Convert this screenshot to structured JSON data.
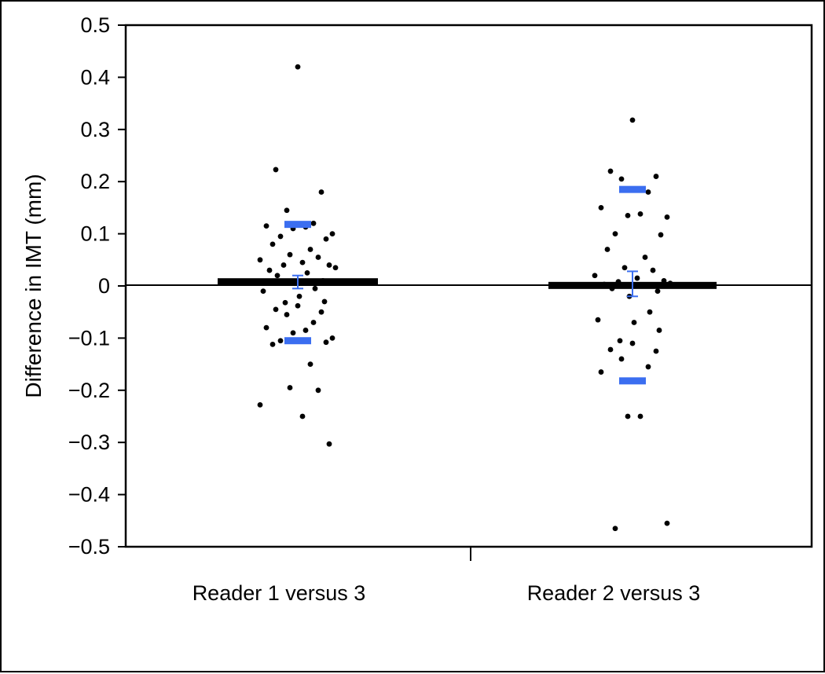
{
  "chart_data": {
    "type": "scatter",
    "title": "",
    "xlabel": "",
    "ylabel": "Difference in IMT (mm)",
    "ylim": [
      -0.5,
      0.5
    ],
    "yticks": [
      0.5,
      0.4,
      0.3,
      0.2,
      0.1,
      0,
      -0.1,
      -0.2,
      -0.3,
      -0.4,
      -0.5
    ],
    "ytick_labels": [
      "0.5",
      "0.4",
      "0.3",
      "0.2",
      "0.1",
      "0",
      "−0.1",
      "−0.2",
      "−0.3",
      "−0.4",
      "−0.5"
    ],
    "categories": [
      "Reader 1 versus 3",
      "Reader 2 versus 3"
    ],
    "reference_line": 0,
    "grid": false,
    "colors": {
      "points": "#000000",
      "mean_bar": "#000000",
      "limits": "#3b6ef0",
      "ci": "#3b6ef0"
    },
    "series": [
      {
        "values": [
          0.42,
          0.223,
          0.18,
          0.145,
          0.12,
          0.115,
          0.113,
          0.11,
          0.1,
          0.095,
          0.09,
          0.08,
          0.07,
          0.06,
          0.055,
          0.05,
          0.045,
          0.04,
          0.04,
          0.035,
          0.03,
          0.025,
          0.02,
          0.01,
          0.005,
          -0.005,
          -0.01,
          -0.02,
          -0.03,
          -0.032,
          -0.038,
          -0.045,
          -0.05,
          -0.055,
          -0.07,
          -0.08,
          -0.085,
          -0.09,
          -0.1,
          -0.105,
          -0.108,
          -0.112,
          -0.15,
          -0.195,
          -0.2,
          -0.228,
          -0.25,
          -0.303
        ],
        "mean": 0.008,
        "ci": [
          -0.005,
          0.02
        ],
        "limits_of_agreement": [
          0.118,
          -0.105
        ]
      },
      {
        "values": [
          0.318,
          0.22,
          0.21,
          0.205,
          0.18,
          0.15,
          0.138,
          0.135,
          0.132,
          0.1,
          0.098,
          0.07,
          0.055,
          0.035,
          0.03,
          0.02,
          0.015,
          0.01,
          0.008,
          0.005,
          0.003,
          0.0,
          -0.005,
          -0.01,
          -0.02,
          -0.05,
          -0.065,
          -0.07,
          -0.085,
          -0.105,
          -0.11,
          -0.122,
          -0.125,
          -0.14,
          -0.155,
          -0.165,
          -0.25,
          -0.25,
          -0.455,
          -0.465
        ],
        "mean": 0.001,
        "ci": [
          -0.02,
          0.028
        ],
        "limits_of_agreement": [
          0.185,
          -0.182
        ]
      }
    ]
  }
}
